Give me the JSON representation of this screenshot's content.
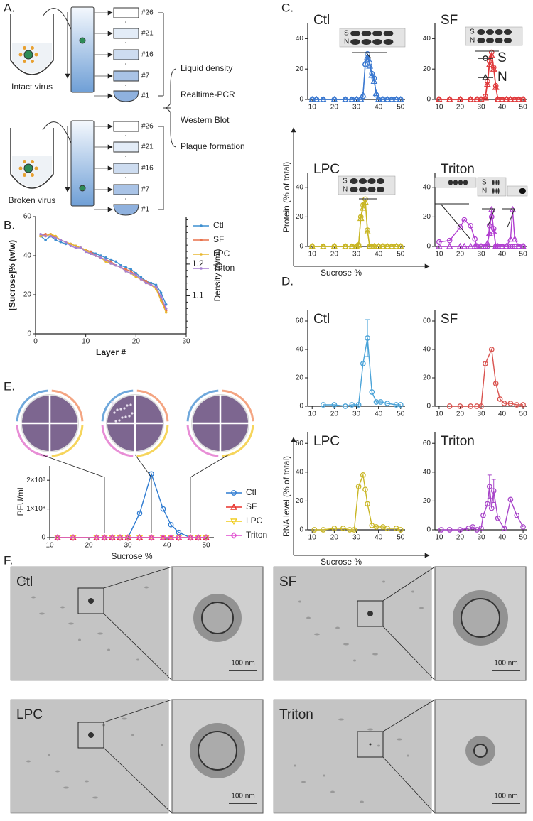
{
  "panel_labels": [
    "A.",
    "B.",
    "C.",
    "D.",
    "E.",
    "F."
  ],
  "diagram": {
    "fractions": [
      "#26",
      "#21",
      "#16",
      "#7",
      "#1"
    ],
    "samples": [
      "Intact virus",
      "Broken virus"
    ],
    "assays": [
      "Liquid density",
      "Realtime-PCR",
      "Western Blot",
      "Plaque formation"
    ]
  },
  "panel_c_axes": {
    "ylabel": "Protein (% of total)",
    "xlabel": "Sucrose %",
    "blot_labels": [
      "S",
      "N"
    ]
  },
  "panel_d_axes": {
    "ylabel": "RNA level (% of total)",
    "xlabel": "Sucrose %"
  },
  "chart_data": [
    {
      "type": "line",
      "xlabel": "Layer #",
      "ylabel": "[Sucrose]% (w/w)",
      "y2label": "Density (g/ml)",
      "x": [
        1,
        2,
        3,
        4,
        5,
        6,
        7,
        8,
        9,
        10,
        11,
        12,
        13,
        14,
        15,
        16,
        17,
        18,
        19,
        20,
        21,
        22,
        23,
        24,
        25,
        26
      ],
      "xlim": [
        0,
        30
      ],
      "xticks": [
        0,
        10,
        20,
        30
      ],
      "ylim": [
        0,
        60
      ],
      "yticks": [
        0,
        20,
        40,
        60
      ],
      "y2lim": [
        0.98,
        1.35
      ],
      "y2ticks": [
        1.1,
        1.2
      ],
      "legend": "right",
      "series": [
        {
          "name": "Ctl",
          "color": "#3d8fd1",
          "marker": "dot",
          "values": [
            50,
            48,
            50,
            48,
            47,
            46,
            46,
            45,
            44,
            43,
            42,
            41,
            40,
            39,
            38,
            37,
            35,
            34,
            33,
            31,
            29,
            27,
            26,
            25,
            21,
            15
          ]
        },
        {
          "name": "SF",
          "color": "#e8714a",
          "marker": "dot",
          "values": [
            50,
            51,
            51,
            49,
            48,
            47,
            46,
            45,
            44,
            43,
            42,
            40,
            39,
            38,
            37,
            35,
            34,
            33,
            32,
            30,
            28,
            27,
            25,
            24,
            18,
            12
          ]
        },
        {
          "name": "LPC",
          "color": "#e8b730",
          "marker": "dot",
          "values": [
            50,
            50,
            51,
            50,
            48,
            47,
            46,
            45,
            44,
            43,
            41,
            40,
            39,
            37,
            36,
            35,
            34,
            32,
            31,
            29,
            28,
            26,
            25,
            23,
            17,
            11
          ]
        },
        {
          "name": "Triton",
          "color": "#a67fd1",
          "marker": "dot",
          "values": [
            51,
            50,
            50,
            49,
            48,
            47,
            45,
            44,
            44,
            42,
            41,
            40,
            39,
            38,
            36,
            35,
            34,
            32,
            31,
            30,
            28,
            26,
            25,
            24,
            19,
            13
          ]
        }
      ]
    },
    {
      "type": "line",
      "title": "Ctl",
      "x": [
        10,
        12,
        15,
        20,
        25,
        28,
        30,
        32,
        33,
        34,
        35,
        36,
        37,
        38,
        39,
        40,
        42,
        44,
        46,
        48,
        50
      ],
      "xlim": [
        8,
        52
      ],
      "xticks": [
        10,
        20,
        30,
        40,
        50
      ],
      "ylim": [
        0,
        50
      ],
      "yticks": [
        0,
        20,
        40
      ],
      "series": [
        {
          "name": "S",
          "color": "#3a78d0",
          "marker": "circle",
          "values": [
            0,
            0,
            0,
            0,
            0,
            0,
            0,
            0,
            2,
            23,
            30,
            24,
            17,
            14,
            3,
            0,
            0,
            0,
            0,
            0,
            0
          ]
        },
        {
          "name": "N",
          "color": "#3a78d0",
          "marker": "triangle",
          "values": [
            0,
            0,
            0,
            0,
            0,
            0,
            0,
            0,
            3,
            24,
            28,
            22,
            16,
            12,
            4,
            0,
            0,
            0,
            0,
            0,
            0
          ]
        }
      ]
    },
    {
      "type": "line",
      "title": "SF",
      "x": [
        10,
        15,
        20,
        25,
        28,
        30,
        32,
        33,
        34,
        35,
        36,
        37,
        38,
        40,
        42,
        44,
        46,
        48,
        50
      ],
      "xlim": [
        8,
        52
      ],
      "xticks": [
        10,
        20,
        30,
        40,
        50
      ],
      "ylim": [
        0,
        50
      ],
      "yticks": [
        0,
        20,
        40
      ],
      "legend": "right",
      "series": [
        {
          "name": "S",
          "color": "#e0393b",
          "marker": "circle",
          "values": [
            0,
            0,
            0,
            0,
            0,
            0,
            2,
            12,
            25,
            31,
            21,
            9,
            0,
            0,
            0,
            0,
            0,
            0,
            0
          ]
        },
        {
          "name": "N",
          "color": "#e0393b",
          "marker": "triangle",
          "values": [
            0,
            0,
            0,
            0,
            0,
            0,
            1,
            10,
            23,
            29,
            20,
            8,
            0,
            0,
            0,
            0,
            0,
            0,
            0
          ]
        }
      ]
    },
    {
      "type": "line",
      "title": "LPC",
      "x": [
        10,
        15,
        20,
        25,
        28,
        30,
        31,
        32,
        33,
        34,
        35,
        36,
        37,
        38,
        40,
        42,
        44,
        46,
        48,
        50
      ],
      "xlim": [
        8,
        52
      ],
      "xticks": [
        10,
        20,
        30,
        40,
        50
      ],
      "ylim": [
        0,
        50
      ],
      "yticks": [
        0,
        20,
        40
      ],
      "series": [
        {
          "name": "S",
          "color": "#c9b624",
          "marker": "circle",
          "values": [
            0,
            0,
            0,
            0,
            0,
            0,
            1,
            20,
            28,
            32,
            11,
            0,
            0,
            0,
            0,
            0,
            0,
            0,
            0,
            0
          ]
        },
        {
          "name": "N",
          "color": "#c9b624",
          "marker": "triangle",
          "values": [
            0,
            0,
            0,
            0,
            0,
            0,
            1,
            19,
            26,
            30,
            10,
            0,
            0,
            0,
            0,
            0,
            0,
            0,
            0,
            0
          ]
        }
      ]
    },
    {
      "type": "line",
      "title": "Triton",
      "x": [
        10,
        15,
        20,
        22,
        25,
        27,
        28,
        30,
        32,
        33,
        34,
        35,
        36,
        37,
        38,
        40,
        42,
        44,
        45,
        46,
        48,
        50
      ],
      "xlim": [
        8,
        52
      ],
      "xticks": [
        10,
        20,
        30,
        40,
        50
      ],
      "ylim": [
        0,
        50
      ],
      "yticks": [
        0,
        20,
        40
      ],
      "series": [
        {
          "name": "S",
          "color": "#b13fd0",
          "marker": "circle",
          "values": [
            3,
            4,
            13,
            18,
            14,
            5,
            0,
            0,
            0,
            0,
            14,
            20,
            12,
            0,
            0,
            0,
            0,
            0,
            0,
            0,
            0,
            0
          ]
        },
        {
          "name": "N",
          "color": "#b13fd0",
          "marker": "triangle",
          "values": [
            0,
            0,
            0,
            0,
            0,
            0,
            0,
            0,
            0,
            2,
            9,
            25,
            10,
            0,
            0,
            0,
            0,
            5,
            25,
            5,
            0,
            0
          ]
        }
      ]
    },
    {
      "type": "line",
      "title": "Ctl",
      "color": "#4aa3d8",
      "marker": "circle",
      "x": [
        15,
        20,
        25,
        28,
        31,
        33,
        35,
        37,
        39,
        41,
        44,
        48,
        50
      ],
      "values": [
        1,
        1,
        0,
        1,
        1,
        30,
        48,
        10,
        3,
        3,
        2,
        1,
        1
      ],
      "errors": [
        null,
        null,
        null,
        null,
        null,
        null,
        13,
        null,
        null,
        null,
        null,
        null,
        null
      ],
      "xlim": [
        8,
        52
      ],
      "xticks": [
        10,
        20,
        30,
        40,
        50
      ],
      "ylim": [
        0,
        68
      ],
      "yticks": [
        0,
        20,
        40,
        60
      ]
    },
    {
      "type": "line",
      "title": "SF",
      "color": "#d9534f",
      "marker": "circle",
      "x": [
        15,
        20,
        25,
        28,
        30,
        32,
        35,
        37,
        39,
        41,
        44,
        47,
        50
      ],
      "values": [
        0,
        0,
        0,
        0,
        0,
        30,
        40,
        16,
        5,
        2,
        2,
        1,
        1
      ],
      "xlim": [
        8,
        52
      ],
      "xticks": [
        10,
        20,
        30,
        40,
        50
      ],
      "ylim": [
        0,
        68
      ],
      "yticks": [
        0,
        20,
        40,
        60
      ]
    },
    {
      "type": "line",
      "title": "LPC",
      "color": "#c9b624",
      "marker": "circle",
      "x": [
        11,
        15,
        20,
        24,
        27,
        29,
        31,
        33,
        34,
        35,
        37,
        39,
        42,
        44,
        48,
        50
      ],
      "values": [
        0,
        0,
        1,
        1,
        0,
        0,
        30,
        38,
        28,
        18,
        3,
        2,
        2,
        1,
        1,
        0
      ],
      "xlim": [
        8,
        52
      ],
      "xticks": [
        10,
        20,
        30,
        40,
        50
      ],
      "ylim": [
        0,
        68
      ],
      "yticks": [
        0,
        20,
        40,
        60
      ]
    },
    {
      "type": "line",
      "title": "Triton",
      "color": "#a845c9",
      "marker": "circle",
      "x": [
        11,
        15,
        20,
        24,
        26,
        28,
        30,
        31,
        33,
        34,
        35,
        36,
        38,
        41,
        44,
        47,
        50
      ],
      "values": [
        0,
        0,
        0,
        1,
        2,
        0,
        1,
        10,
        18,
        30,
        15,
        27,
        8,
        1,
        21,
        10,
        2
      ],
      "errors": [
        null,
        null,
        null,
        null,
        null,
        null,
        null,
        null,
        null,
        8,
        null,
        8,
        null,
        null,
        null,
        null,
        null
      ],
      "xlim": [
        8,
        52
      ],
      "xticks": [
        10,
        20,
        30,
        40,
        50
      ],
      "ylim": [
        0,
        68
      ],
      "yticks": [
        0,
        20,
        40,
        60
      ]
    },
    {
      "type": "line",
      "xlabel": "Sucrose %",
      "ylabel": "PFU/ml",
      "legend": "right",
      "x": [
        12,
        16,
        22,
        24,
        26,
        28,
        30,
        33,
        36,
        39,
        41,
        43,
        46,
        48,
        50
      ],
      "xlim": [
        10,
        52
      ],
      "xticks": [
        10,
        20,
        30,
        40,
        50
      ],
      "ylim": [
        0,
        250000000
      ],
      "yticks": [
        {
          "value": 0,
          "label": "0"
        },
        {
          "value": 100000000,
          "label": "1×10⁸"
        },
        {
          "value": 200000000,
          "label": "2×10⁸"
        }
      ],
      "series": [
        {
          "name": "Ctl",
          "color": "#2e7bd1",
          "marker": "circle",
          "values": [
            0,
            0,
            0,
            0,
            0,
            0,
            0,
            85000000,
            222000000,
            100000000,
            45000000,
            18000000,
            0,
            0,
            0
          ]
        },
        {
          "name": "SF",
          "color": "#e8302a",
          "marker": "triangle",
          "values": [
            0,
            0,
            0,
            0,
            0,
            0,
            0,
            0,
            0,
            0,
            0,
            0,
            0,
            0,
            0
          ]
        },
        {
          "name": "LPC",
          "color": "#f0cc1a",
          "marker": "triangle-down",
          "values": [
            0,
            0,
            0,
            0,
            0,
            0,
            0,
            0,
            0,
            0,
            0,
            0,
            0,
            0,
            0
          ]
        },
        {
          "name": "Triton",
          "color": "#e04fd0",
          "marker": "diamond",
          "values": [
            0,
            0,
            0,
            0,
            0,
            0,
            0,
            0,
            0,
            0,
            0,
            0,
            0,
            0,
            0
          ]
        }
      ]
    }
  ],
  "micrographs": [
    {
      "label": "Ctl",
      "scale_bar": "100 nm"
    },
    {
      "label": "SF",
      "scale_bar": "100 nm"
    },
    {
      "label": "LPC",
      "scale_bar": "100 nm"
    },
    {
      "label": "Triton",
      "scale_bar": "100 nm"
    }
  ]
}
